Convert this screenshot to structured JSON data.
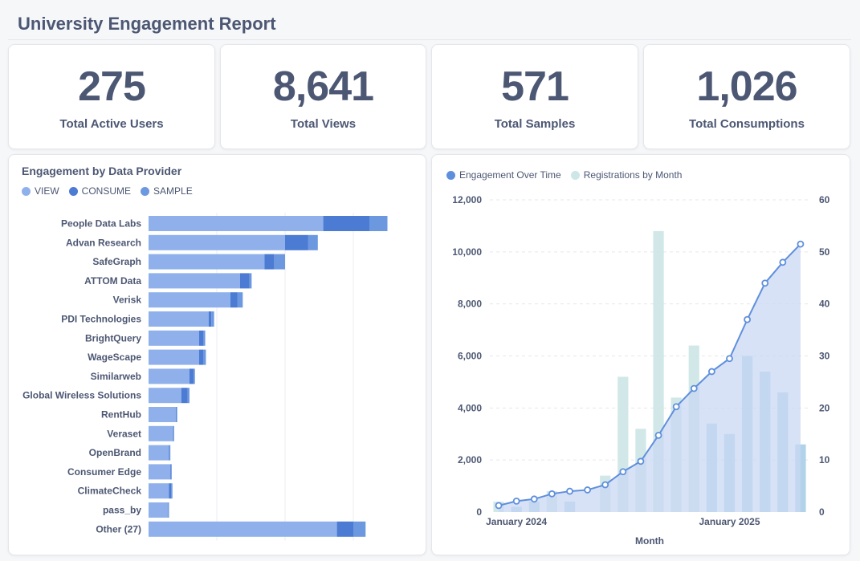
{
  "header": {
    "title": "University Engagement Report"
  },
  "kpis": [
    {
      "value": "275",
      "label": "Total Active Users"
    },
    {
      "value": "8,641",
      "label": "Total Views"
    },
    {
      "value": "571",
      "label": "Total Samples"
    },
    {
      "value": "1,026",
      "label": "Total Consumptions"
    }
  ],
  "colors": {
    "view": "#8fb0ea",
    "consume": "#4b7bd3",
    "sample": "#6c98e0",
    "line": "#5f8fdc",
    "area": "#c9d8f3",
    "bar_light": "#cde6e6",
    "bar_dark": "#a9cde6"
  },
  "provider_chart": {
    "title": "Engagement by Data Provider",
    "legend": [
      "VIEW",
      "CONSUME",
      "SAMPLE"
    ]
  },
  "time_chart": {
    "legend": [
      "Engagement Over Time",
      "Registrations by Month"
    ],
    "xlabel": "Month"
  },
  "chart_data": [
    {
      "type": "bar",
      "orientation": "horizontal",
      "stacked": true,
      "title": "Engagement by Data Provider",
      "categories": [
        "People Data Labs",
        "Advan Research",
        "SafeGraph",
        "ATTOM Data",
        "Verisk",
        "PDI Technologies",
        "BrightQuery",
        "WageScape",
        "Similarweb",
        "Global Wireless Solutions",
        "RentHub",
        "Veraset",
        "OpenBrand",
        "Consumer Edge",
        "ClimateCheck",
        "pass_by",
        "Other (27)"
      ],
      "series": [
        {
          "name": "VIEW",
          "values": [
            1280,
            1000,
            850,
            670,
            600,
            440,
            370,
            370,
            300,
            240,
            200,
            180,
            150,
            160,
            150,
            140,
            1380
          ]
        },
        {
          "name": "CONSUME",
          "values": [
            340,
            170,
            70,
            70,
            50,
            20,
            30,
            30,
            30,
            45,
            3,
            3,
            5,
            5,
            15,
            3,
            120
          ]
        },
        {
          "name": "SAMPLE",
          "values": [
            130,
            70,
            80,
            15,
            40,
            20,
            15,
            20,
            10,
            15,
            7,
            5,
            5,
            5,
            10,
            7,
            90
          ]
        }
      ],
      "xlim": [
        0,
        2000
      ],
      "legend_position": "top-left",
      "grid": true
    },
    {
      "type": "line",
      "series_line": {
        "name": "Engagement Over Time",
        "axis": "left",
        "x": [
          "2023-12",
          "2024-01",
          "2024-02",
          "2024-03",
          "2024-04",
          "2024-05",
          "2024-06",
          "2024-07",
          "2024-08",
          "2024-09",
          "2024-10",
          "2024-11",
          "2024-12",
          "2025-01",
          "2025-02",
          "2025-03",
          "2025-04",
          "2025-05"
        ],
        "values": [
          250,
          420,
          500,
          700,
          800,
          850,
          1050,
          1550,
          1950,
          2950,
          4050,
          4750,
          5400,
          5900,
          7400,
          8800,
          9600,
          10300
        ]
      },
      "series_bar": {
        "name": "Registrations by Month",
        "axis": "right",
        "x": [
          "2023-12",
          "2024-01",
          "2024-02",
          "2024-03",
          "2024-04",
          "2024-05",
          "2024-06",
          "2024-07",
          "2024-08",
          "2024-09",
          "2024-10",
          "2024-11",
          "2024-12",
          "2025-01",
          "2025-02",
          "2025-03",
          "2025-04",
          "2025-05"
        ],
        "values": [
          2,
          1,
          2,
          4,
          2,
          0,
          7,
          26,
          16,
          54,
          22,
          32,
          17,
          15,
          30,
          27,
          23,
          13
        ]
      },
      "ylim_left": [
        0,
        12000
      ],
      "ylim_right": [
        0,
        60
      ],
      "yticks_left": [
        "0",
        "2,000",
        "4,000",
        "6,000",
        "8,000",
        "10,000",
        "12,000"
      ],
      "yticks_right": [
        "0",
        "10",
        "20",
        "30",
        "40",
        "50",
        "60"
      ],
      "xtick_labels": [
        {
          "label": "January 2024",
          "x": "2024-01"
        },
        {
          "label": "January 2025",
          "x": "2025-01"
        }
      ],
      "xlabel": "Month",
      "legend_position": "top-left",
      "grid": true
    }
  ]
}
